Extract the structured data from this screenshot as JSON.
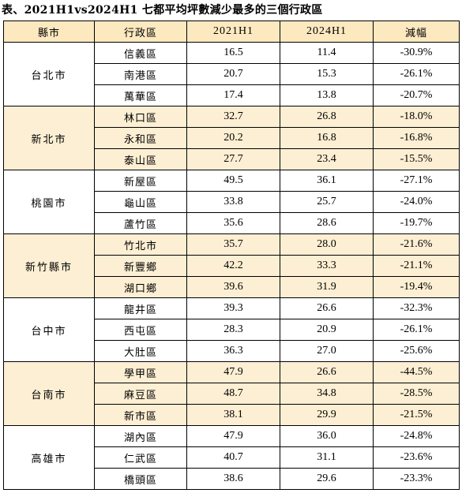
{
  "title": "表、2021H1vs2024H1 七都平均坪數減少最多的三個行政區",
  "headers": [
    "縣市",
    "行政區",
    "2021H1",
    "2024H1",
    "減幅"
  ],
  "groups": [
    {
      "city": "台北市",
      "rows": [
        {
          "district": "信義區",
          "h2021": "16.5",
          "h2024": "11.4",
          "change": "-30.9%"
        },
        {
          "district": "南港區",
          "h2021": "20.7",
          "h2024": "15.3",
          "change": "-26.1%"
        },
        {
          "district": "萬華區",
          "h2021": "17.4",
          "h2024": "13.8",
          "change": "-20.7%"
        }
      ]
    },
    {
      "city": "新北市",
      "rows": [
        {
          "district": "林口區",
          "h2021": "32.7",
          "h2024": "26.8",
          "change": "-18.0%"
        },
        {
          "district": "永和區",
          "h2021": "20.2",
          "h2024": "16.8",
          "change": "-16.8%"
        },
        {
          "district": "泰山區",
          "h2021": "27.7",
          "h2024": "23.4",
          "change": "-15.5%"
        }
      ]
    },
    {
      "city": "桃園市",
      "rows": [
        {
          "district": "新屋區",
          "h2021": "49.5",
          "h2024": "36.1",
          "change": "-27.1%"
        },
        {
          "district": "龜山區",
          "h2021": "33.8",
          "h2024": "25.7",
          "change": "-24.0%"
        },
        {
          "district": "蘆竹區",
          "h2021": "35.6",
          "h2024": "28.6",
          "change": "-19.7%"
        }
      ]
    },
    {
      "city": "新竹縣市",
      "rows": [
        {
          "district": "竹北市",
          "h2021": "35.7",
          "h2024": "28.0",
          "change": "-21.6%"
        },
        {
          "district": "新豐鄉",
          "h2021": "42.2",
          "h2024": "33.3",
          "change": "-21.1%"
        },
        {
          "district": "湖口鄉",
          "h2021": "39.6",
          "h2024": "31.9",
          "change": "-19.4%"
        }
      ]
    },
    {
      "city": "台中市",
      "rows": [
        {
          "district": "龍井區",
          "h2021": "39.3",
          "h2024": "26.6",
          "change": "-32.3%"
        },
        {
          "district": "西屯區",
          "h2021": "28.3",
          "h2024": "20.9",
          "change": "-26.1%"
        },
        {
          "district": "大肚區",
          "h2021": "36.3",
          "h2024": "27.0",
          "change": "-25.6%"
        }
      ]
    },
    {
      "city": "台南市",
      "rows": [
        {
          "district": "學甲區",
          "h2021": "47.9",
          "h2024": "26.6",
          "change": "-44.5%"
        },
        {
          "district": "麻豆區",
          "h2021": "48.7",
          "h2024": "34.8",
          "change": "-28.5%"
        },
        {
          "district": "新市區",
          "h2021": "38.1",
          "h2024": "29.9",
          "change": "-21.5%"
        }
      ]
    },
    {
      "city": "高雄市",
      "rows": [
        {
          "district": "湖內區",
          "h2021": "47.9",
          "h2024": "36.0",
          "change": "-24.8%"
        },
        {
          "district": "仁武區",
          "h2021": "40.7",
          "h2024": "31.1",
          "change": "-23.6%"
        },
        {
          "district": "橋頭區",
          "h2021": "38.6",
          "h2024": "29.6",
          "change": "-23.3%"
        }
      ]
    }
  ]
}
